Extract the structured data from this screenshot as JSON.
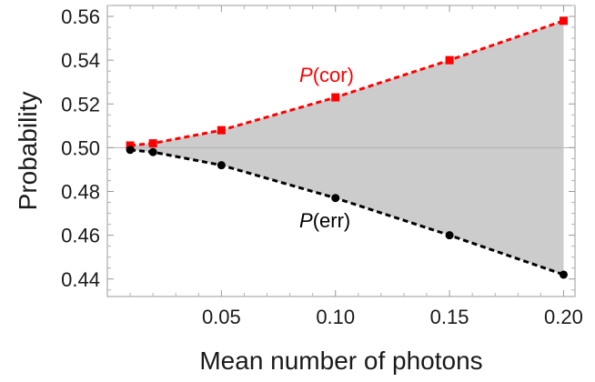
{
  "chart_data": {
    "type": "line",
    "xlabel": "Mean number of photons",
    "ylabel": "Probability",
    "xlim": [
      0.0,
      0.205
    ],
    "ylim": [
      0.432,
      0.565
    ],
    "x_ticks": [
      0.05,
      0.1,
      0.15,
      0.2
    ],
    "x_tick_labels": [
      "0.05",
      "0.10",
      "0.15",
      "0.20"
    ],
    "y_ticks": [
      0.44,
      0.46,
      0.48,
      0.5,
      0.52,
      0.54,
      0.56
    ],
    "y_tick_labels": [
      "0.44",
      "0.46",
      "0.48",
      "0.50",
      "0.52",
      "0.54",
      "0.56"
    ],
    "reference_line": 0.5,
    "grid": false,
    "fill_between_series": true,
    "x": [
      0.01,
      0.02,
      0.05,
      0.1,
      0.15,
      0.2
    ],
    "series": [
      {
        "label_var": "P",
        "label_arg": "(cor)",
        "color": "#ff0000",
        "marker": "square",
        "line_style": "dashed",
        "values": [
          0.501,
          0.502,
          0.508,
          0.523,
          0.54,
          0.558
        ]
      },
      {
        "label_var": "P",
        "label_arg": "(err)",
        "color": "#000000",
        "marker": "circle",
        "line_style": "dashed",
        "values": [
          0.499,
          0.498,
          0.492,
          0.477,
          0.46,
          0.442
        ]
      }
    ],
    "fill_color": "#cccccc",
    "reference_line_color": "#b3b3b3"
  }
}
